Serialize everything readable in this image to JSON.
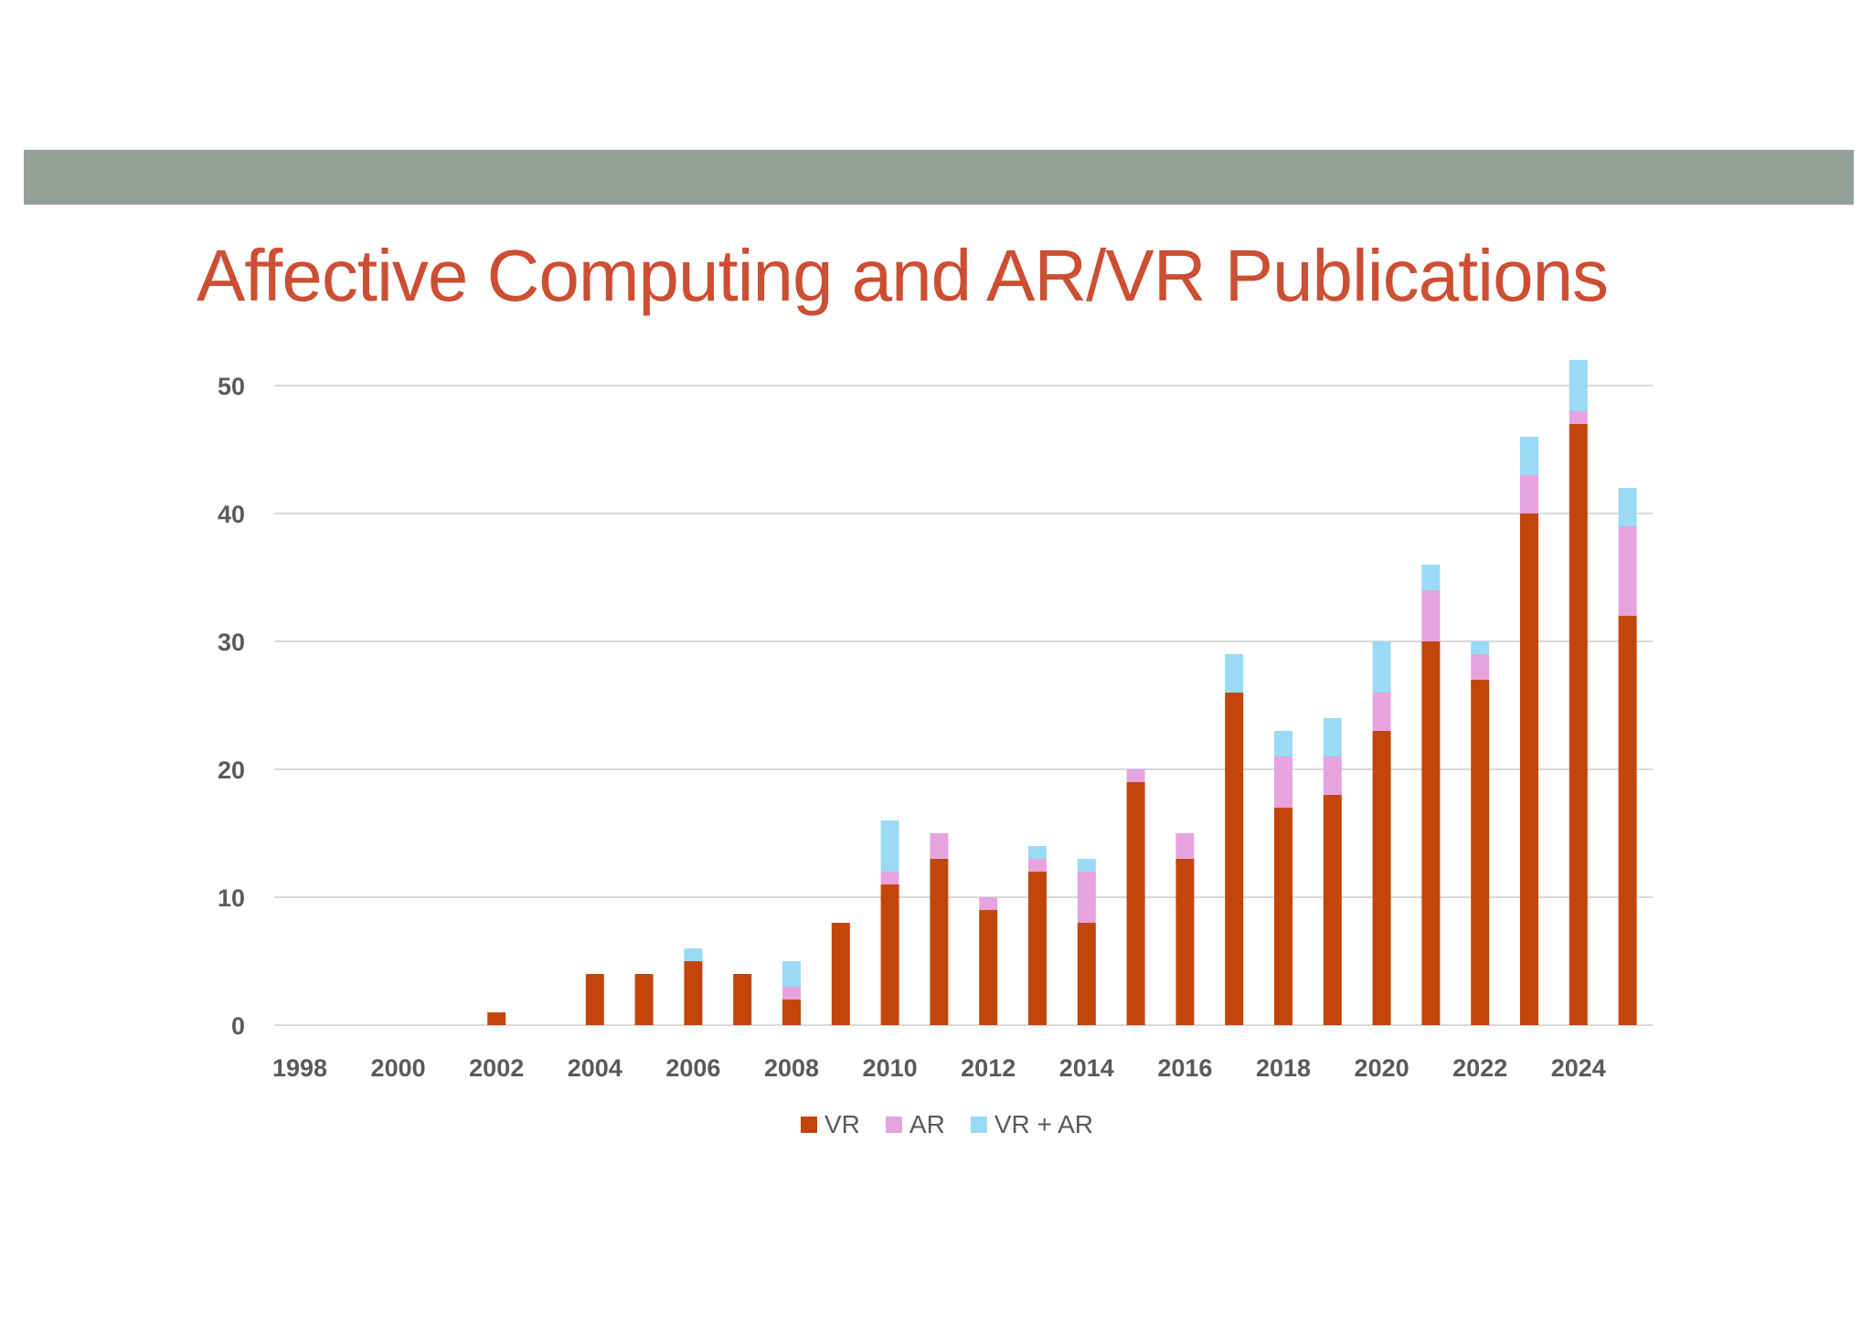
{
  "slide": {
    "title": "Affective Computing and AR/VR Publications"
  },
  "colors": {
    "band": "#93a199",
    "title": "#cc4e33",
    "grid": "#d9d9d9"
  },
  "chart_data": {
    "type": "bar",
    "stacked": true,
    "title": "",
    "xlabel": "",
    "ylabel": "",
    "categories": [
      1998,
      1999,
      2000,
      2001,
      2002,
      2003,
      2004,
      2005,
      2006,
      2007,
      2008,
      2009,
      2010,
      2011,
      2012,
      2013,
      2014,
      2015,
      2016,
      2017,
      2018,
      2019,
      2020,
      2021,
      2022,
      2023,
      2024,
      2025
    ],
    "x_tick_labels": [
      "1998",
      "2000",
      "2002",
      "2004",
      "2006",
      "2008",
      "2010",
      "2012",
      "2014",
      "2016",
      "2018",
      "2020",
      "2022",
      "2024"
    ],
    "y_tick_labels": [
      "0",
      "10",
      "20",
      "30",
      "40",
      "50"
    ],
    "ylim": [
      0,
      52
    ],
    "grid": true,
    "legend_position": "bottom",
    "series": [
      {
        "name": "VR",
        "color": "#c2460a",
        "values": [
          0,
          0,
          0,
          0,
          1,
          0,
          4,
          4,
          5,
          4,
          2,
          8,
          11,
          13,
          9,
          12,
          8,
          19,
          13,
          26,
          17,
          18,
          23,
          30,
          27,
          40,
          47,
          32
        ]
      },
      {
        "name": "AR",
        "color": "#e7a3de",
        "values": [
          0,
          0,
          0,
          0,
          0,
          0,
          0,
          0,
          0,
          0,
          1,
          0,
          1,
          2,
          1,
          1,
          4,
          1,
          2,
          0,
          4,
          3,
          3,
          4,
          2,
          3,
          1,
          7
        ]
      },
      {
        "name": "VR + AR",
        "color": "#99daf4",
        "values": [
          0,
          0,
          0,
          0,
          0,
          0,
          0,
          0,
          1,
          0,
          2,
          0,
          4,
          0,
          0,
          1,
          1,
          0,
          0,
          3,
          2,
          3,
          4,
          2,
          1,
          3,
          4,
          3
        ]
      }
    ]
  }
}
